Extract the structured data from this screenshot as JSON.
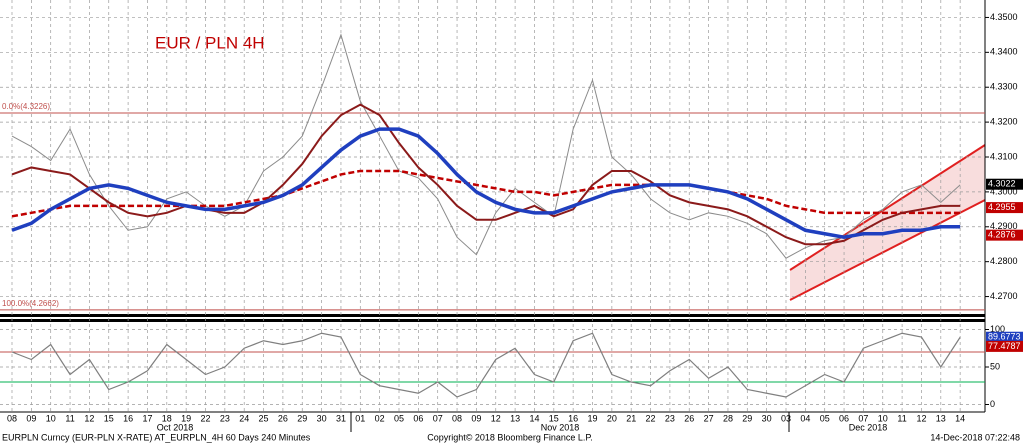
{
  "chart_data": [
    {
      "type": "line",
      "title": "EUR / PLN 4H",
      "categories": [
        "08",
        "09",
        "10",
        "11",
        "12",
        "15",
        "16",
        "17",
        "18",
        "19",
        "22",
        "23",
        "24",
        "25",
        "26",
        "29",
        "30",
        "31",
        "01",
        "02",
        "05",
        "06",
        "07",
        "08",
        "09",
        "12",
        "13",
        "14",
        "15",
        "16",
        "19",
        "20",
        "21",
        "22",
        "23",
        "26",
        "27",
        "28",
        "29",
        "30",
        "03",
        "04",
        "05",
        "06",
        "07",
        "10",
        "11",
        "12",
        "13",
        "14"
      ],
      "months": [
        "Oct 2018",
        "Nov 2018",
        "Dec 2018"
      ],
      "series": [
        {
          "color": "#8b8b8b",
          "width": 1,
          "values": [
            4.316,
            4.313,
            4.309,
            4.318,
            4.305,
            4.296,
            4.289,
            4.29,
            4.298,
            4.3,
            4.296,
            4.293,
            4.296,
            4.306,
            4.31,
            4.316,
            4.33,
            4.345,
            4.326,
            4.316,
            4.306,
            4.304,
            4.298,
            4.287,
            4.282,
            4.294,
            4.301,
            4.297,
            4.293,
            4.318,
            4.332,
            4.31,
            4.305,
            4.298,
            4.294,
            4.292,
            4.294,
            4.293,
            4.291,
            4.288,
            4.281,
            4.284,
            4.286,
            4.287,
            4.292,
            4.295,
            4.3,
            4.302,
            4.297,
            4.302
          ]
        },
        {
          "color": "#c00000",
          "width": 2.5,
          "dash": true,
          "values": [
            4.293,
            4.294,
            4.295,
            4.296,
            4.296,
            4.296,
            4.296,
            4.296,
            4.296,
            4.296,
            4.296,
            4.296,
            4.297,
            4.298,
            4.299,
            4.301,
            4.303,
            4.305,
            4.306,
            4.306,
            4.306,
            4.305,
            4.304,
            4.303,
            4.302,
            4.301,
            4.3,
            4.3,
            4.299,
            4.3,
            4.301,
            4.302,
            4.302,
            4.302,
            4.302,
            4.302,
            4.301,
            4.3,
            4.299,
            4.298,
            4.296,
            4.295,
            4.294,
            4.294,
            4.294,
            4.294,
            4.294,
            4.294,
            4.294,
            4.294
          ]
        },
        {
          "color": "#8b1a1a",
          "width": 2,
          "values": [
            4.305,
            4.307,
            4.306,
            4.305,
            4.301,
            4.297,
            4.294,
            4.293,
            4.294,
            4.296,
            4.295,
            4.294,
            4.294,
            4.297,
            4.302,
            4.308,
            4.316,
            4.322,
            4.325,
            4.322,
            4.314,
            4.307,
            4.302,
            4.296,
            4.292,
            4.292,
            4.294,
            4.296,
            4.293,
            4.295,
            4.302,
            4.306,
            4.306,
            4.303,
            4.299,
            4.297,
            4.296,
            4.295,
            4.293,
            4.29,
            4.287,
            4.285,
            4.285,
            4.286,
            4.289,
            4.292,
            4.294,
            4.295,
            4.296,
            4.296
          ]
        },
        {
          "color": "#1f3fbf",
          "width": 3.5,
          "values": [
            4.289,
            4.291,
            4.295,
            4.298,
            4.301,
            4.302,
            4.301,
            4.299,
            4.297,
            4.296,
            4.295,
            4.295,
            4.296,
            4.297,
            4.299,
            4.302,
            4.307,
            4.312,
            4.316,
            4.318,
            4.318,
            4.316,
            4.311,
            4.305,
            4.3,
            4.297,
            4.295,
            4.294,
            4.294,
            4.296,
            4.298,
            4.3,
            4.301,
            4.302,
            4.302,
            4.302,
            4.301,
            4.3,
            4.298,
            4.295,
            4.292,
            4.289,
            4.288,
            4.287,
            4.288,
            4.288,
            4.289,
            4.289,
            4.29,
            4.29
          ]
        }
      ],
      "levels": [
        {
          "value": 4.3226,
          "label": "0.0%(4.3226)",
          "color": "#c0504d"
        },
        {
          "value": 4.2662,
          "label": "100.0%(4.2662)",
          "color": "#c0504d"
        }
      ],
      "markers": [
        {
          "value": 4.3022,
          "color": "#000000"
        },
        {
          "value": 4.2955,
          "color": "#c00000"
        },
        {
          "value": 4.2876,
          "color": "#c00000"
        }
      ],
      "ylim": [
        4.265,
        4.355
      ],
      "yticks": [
        {
          "value": 4.27,
          "label": "4.2700"
        },
        {
          "value": 4.28,
          "label": "4.2800"
        },
        {
          "value": 4.29,
          "label": "4.2900"
        },
        {
          "value": 4.3,
          "label": "4.3000"
        },
        {
          "value": 4.31,
          "label": "4.3100"
        },
        {
          "value": 4.32,
          "label": "4.3200"
        },
        {
          "value": 4.33,
          "label": "4.3300"
        },
        {
          "value": 4.34,
          "label": "4.3400"
        },
        {
          "value": 4.35,
          "label": "4.3500"
        }
      ],
      "grid": true
    },
    {
      "type": "line",
      "series": [
        {
          "color": "#7f7f7f",
          "width": 1.2,
          "values": [
            70,
            60,
            80,
            40,
            60,
            20,
            30,
            45,
            80,
            60,
            40,
            50,
            75,
            85,
            80,
            85,
            95,
            90,
            40,
            25,
            20,
            15,
            30,
            10,
            20,
            60,
            75,
            40,
            30,
            85,
            95,
            40,
            30,
            25,
            45,
            60,
            35,
            50,
            20,
            15,
            10,
            25,
            40,
            30,
            75,
            85,
            95,
            90,
            50,
            89.6773
          ]
        }
      ],
      "markers": [
        {
          "value": 89.6773,
          "color": "#1f3fbf"
        },
        {
          "value": 77.4787,
          "color": "#c00000"
        }
      ],
      "levels": [
        {
          "value": 70,
          "color": "#c0504d"
        },
        {
          "value": 30,
          "color": "#00b050"
        }
      ],
      "ylim": [
        -10,
        110
      ],
      "yticks": [
        0,
        50,
        100
      ],
      "grid": true
    }
  ],
  "footer": {
    "left": "EURPLN Curncy (EUR-PLN X-RATE) AT_EURPLN_4H 60 Days 240 Minutes",
    "center": "Copyright© 2018 Bloomberg Finance L.P.",
    "right": "14-Dec-2018 07:22:48"
  }
}
